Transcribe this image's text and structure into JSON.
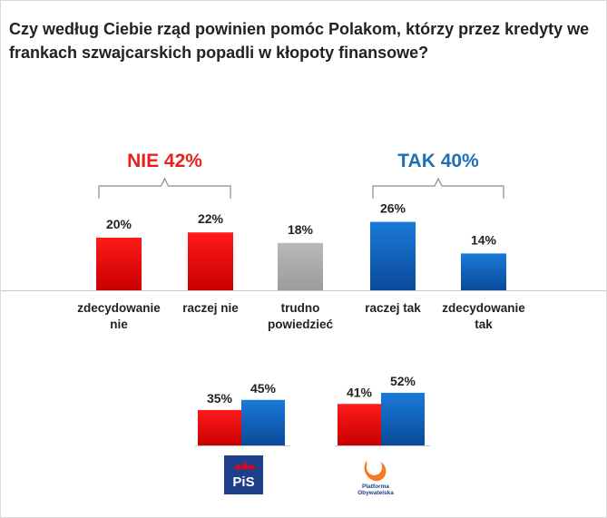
{
  "title": "Czy według Ciebie rząd powinien pomóc Polakom, którzy przez kredyty we frankach szwajcarskich popadli w kłopoty finansowe?",
  "chart_data": [
    {
      "type": "bar",
      "title": "Czy według Ciebie rząd powinien pomóc Polakom, którzy przez kredyty we frankach szwajcarskich popadli w kłopoty finansowe?",
      "categories": [
        [
          "zdecydowanie",
          "nie"
        ],
        [
          "raczej nie"
        ],
        [
          "trudno",
          "powiedzieć"
        ],
        [
          "raczej tak"
        ],
        [
          "zdecydowanie",
          "tak"
        ]
      ],
      "values": [
        20,
        22,
        18,
        26,
        14
      ],
      "value_labels": [
        "20%",
        "22%",
        "18%",
        "26%",
        "14%"
      ],
      "colors": [
        "#e8000f",
        "#e8000f",
        "#a6a6a6",
        "#0a5db5",
        "#0a5db5"
      ],
      "unit": "%",
      "ylim": [
        0,
        30
      ],
      "xlabel": "",
      "ylabel": "",
      "grid": false,
      "groups": [
        {
          "label": "NIE 42%",
          "value": 42,
          "color": "#e8201e",
          "members": [
            0,
            1
          ]
        },
        {
          "label": "TAK 40%",
          "value": 40,
          "color": "#1f6fb5",
          "members": [
            3,
            4
          ]
        }
      ]
    },
    {
      "type": "bar",
      "title": "",
      "subgroups": [
        {
          "party": "PiS",
          "logo_text": "PiS",
          "series": [
            {
              "name": "NIE",
              "value": 35,
              "label": "35%",
              "color": "#e8000f"
            },
            {
              "name": "TAK",
              "value": 45,
              "label": "45%",
              "color": "#0a5db5"
            }
          ]
        },
        {
          "party": "Platforma Obywatelska",
          "logo_text": [
            "Platforma",
            "Obywatelska"
          ],
          "series": [
            {
              "name": "NIE",
              "value": 41,
              "label": "41%",
              "color": "#e8000f"
            },
            {
              "name": "TAK",
              "value": 52,
              "label": "52%",
              "color": "#0a5db5"
            }
          ]
        }
      ],
      "ylim": [
        0,
        60
      ],
      "unit": "%"
    }
  ]
}
